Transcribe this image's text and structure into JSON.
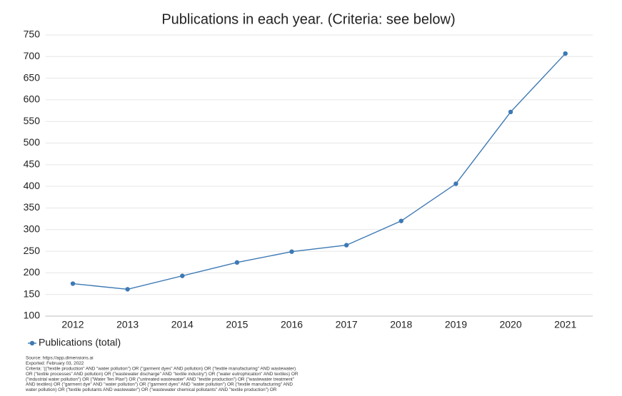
{
  "chart_data": {
    "type": "line",
    "title": "Publications in each year. (Criteria: see below)",
    "categories": [
      "2012",
      "2013",
      "2014",
      "2015",
      "2016",
      "2017",
      "2018",
      "2019",
      "2020",
      "2021"
    ],
    "series": [
      {
        "name": "Publications (total)",
        "color": "#3d79b4",
        "values": [
          175,
          162,
          193,
          224,
          249,
          264,
          320,
          406,
          572,
          707
        ]
      }
    ],
    "ylim": [
      100,
      750
    ],
    "yticks": [
      100,
      150,
      200,
      250,
      300,
      350,
      400,
      450,
      500,
      550,
      600,
      650,
      700,
      750
    ],
    "grid": true,
    "legend": "bottom-left",
    "notes": [
      "Source: https://app.dimensions.ai",
      "Exported: February 03, 2022",
      "Criteria: '((\"textile production\" AND \"water pollution\") OR (\"garment dyes\" AND pollution) OR (\"textile manufacturing\" AND wastewater)",
      "OR (\"textile processes\" AND pollution) OR (\"wastewater discharge\" AND \"textile industry\") OR (\"water eutrophication\" AND textiles) OR",
      "(\"industrial water pollution\") OR (\"Water Ten Plan\") OR (\"untreated wastewater\" AND \"textile production\") OR (\"wastewater treatment\"",
      "AND textiles) OR (\"garment dye\" AND \"water pollution\") OR (\"garment dyes\" AND \"water pollution\") OR (\"textile manufacturing\" AND",
      "water pollution) OR (\"textile pollutants AND wastewater\") OR (\"wastewater chemical pollutants\" AND \"textile production\") OR"
    ]
  }
}
